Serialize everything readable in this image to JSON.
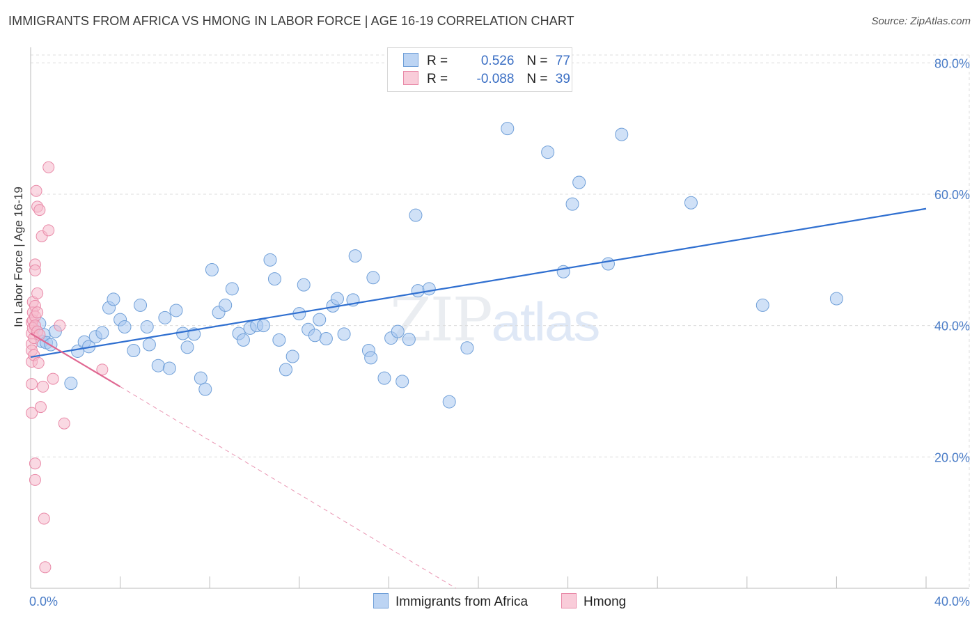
{
  "title": "IMMIGRANTS FROM AFRICA VS HMONG IN LABOR FORCE | AGE 16-19 CORRELATION CHART",
  "source": "Source: ZipAtlas.com",
  "watermark": {
    "zip": "ZIP",
    "atlas": "atlas"
  },
  "legend": {
    "rows": [
      {
        "r_label": "R =",
        "r_value": "0.526",
        "n_label": "N =",
        "n_value": "77"
      },
      {
        "r_label": "R =",
        "r_value": "-0.088",
        "n_label": "N =",
        "n_value": "39"
      }
    ]
  },
  "colors": {
    "blue_fill": "#a9c8f0",
    "blue_stroke": "#6f9fd8",
    "blue_line": "#2f6fd0",
    "pink_fill": "#f6b9cc",
    "pink_stroke": "#e98aa8",
    "pink_line": "#e06892",
    "grid": "#dcdcdc",
    "tick_text": "#4a7cc7"
  },
  "chart_data": {
    "type": "scatter",
    "title": "IMMIGRANTS FROM AFRICA VS HMONG IN LABOR FORCE | AGE 16-19 CORRELATION CHART",
    "xlabel": "",
    "ylabel": "In Labor Force | Age 16-19",
    "xlim": [
      0,
      40
    ],
    "ylim": [
      0,
      83
    ],
    "x_tick_labels": [
      "0.0%",
      "40.0%"
    ],
    "y_ticks": [
      20,
      40,
      60,
      80
    ],
    "y_tick_labels": [
      "20.0%",
      "40.0%",
      "60.0%",
      "80.0%"
    ],
    "grid": true,
    "series": [
      {
        "name": "Immigrants from Africa",
        "color": "#a9c8f0",
        "points": [
          [
            0.4,
            40.3
          ],
          [
            0.5,
            37.6
          ],
          [
            0.6,
            38.6
          ],
          [
            0.7,
            37.4
          ],
          [
            0.9,
            37.1
          ],
          [
            1.1,
            39.1
          ],
          [
            1.8,
            31.2
          ],
          [
            2.1,
            36.1
          ],
          [
            2.4,
            37.5
          ],
          [
            2.6,
            36.8
          ],
          [
            2.9,
            38.3
          ],
          [
            3.2,
            38.9
          ],
          [
            3.5,
            42.7
          ],
          [
            3.7,
            44.0
          ],
          [
            4.0,
            40.9
          ],
          [
            4.2,
            39.8
          ],
          [
            4.6,
            36.2
          ],
          [
            4.9,
            43.1
          ],
          [
            5.2,
            39.8
          ],
          [
            5.3,
            37.1
          ],
          [
            5.7,
            33.9
          ],
          [
            6.0,
            41.2
          ],
          [
            6.2,
            33.5
          ],
          [
            6.5,
            42.3
          ],
          [
            6.8,
            38.8
          ],
          [
            7.0,
            36.7
          ],
          [
            7.3,
            38.7
          ],
          [
            7.6,
            32.0
          ],
          [
            7.8,
            30.3
          ],
          [
            8.1,
            48.5
          ],
          [
            8.4,
            42.0
          ],
          [
            8.7,
            43.1
          ],
          [
            9.0,
            45.6
          ],
          [
            9.3,
            38.8
          ],
          [
            9.5,
            37.8
          ],
          [
            9.8,
            39.6
          ],
          [
            10.1,
            40.0
          ],
          [
            10.4,
            40.0
          ],
          [
            10.7,
            50.0
          ],
          [
            10.9,
            47.1
          ],
          [
            11.1,
            37.8
          ],
          [
            11.4,
            33.3
          ],
          [
            11.7,
            35.3
          ],
          [
            12.0,
            41.8
          ],
          [
            12.2,
            46.2
          ],
          [
            12.4,
            39.4
          ],
          [
            12.7,
            38.5
          ],
          [
            12.9,
            40.9
          ],
          [
            13.2,
            38.0
          ],
          [
            13.5,
            43.0
          ],
          [
            13.7,
            44.1
          ],
          [
            14.0,
            38.7
          ],
          [
            14.4,
            43.9
          ],
          [
            14.5,
            50.6
          ],
          [
            15.1,
            36.2
          ],
          [
            15.2,
            35.1
          ],
          [
            15.3,
            47.3
          ],
          [
            15.8,
            32.0
          ],
          [
            16.1,
            38.1
          ],
          [
            16.4,
            39.1
          ],
          [
            16.6,
            31.5
          ],
          [
            16.9,
            37.9
          ],
          [
            17.2,
            56.8
          ],
          [
            17.3,
            45.3
          ],
          [
            17.8,
            45.6
          ],
          [
            18.7,
            28.4
          ],
          [
            19.5,
            36.6
          ],
          [
            21.3,
            70.0
          ],
          [
            23.1,
            66.4
          ],
          [
            23.8,
            48.2
          ],
          [
            24.2,
            58.5
          ],
          [
            24.5,
            61.8
          ],
          [
            25.8,
            49.4
          ],
          [
            26.4,
            69.1
          ],
          [
            29.5,
            58.7
          ],
          [
            32.7,
            43.1
          ],
          [
            36.0,
            44.1
          ]
        ],
        "trend": {
          "x0": 0,
          "y0": 35.2,
          "x1": 40,
          "y1": 57.8
        }
      },
      {
        "name": "Hmong",
        "color": "#f6b9cc",
        "points": [
          [
            0.05,
            40.5
          ],
          [
            0.05,
            38.8
          ],
          [
            0.05,
            37.2
          ],
          [
            0.05,
            36.2
          ],
          [
            0.05,
            34.5
          ],
          [
            0.05,
            31.1
          ],
          [
            0.05,
            26.7
          ],
          [
            0.1,
            43.6
          ],
          [
            0.1,
            42.0
          ],
          [
            0.1,
            40.8
          ],
          [
            0.1,
            39.6
          ],
          [
            0.15,
            38.1
          ],
          [
            0.15,
            35.5
          ],
          [
            0.2,
            49.3
          ],
          [
            0.2,
            48.4
          ],
          [
            0.2,
            43.0
          ],
          [
            0.2,
            41.4
          ],
          [
            0.2,
            40.0
          ],
          [
            0.2,
            19.0
          ],
          [
            0.2,
            16.5
          ],
          [
            0.25,
            60.5
          ],
          [
            0.3,
            58.1
          ],
          [
            0.3,
            42.0
          ],
          [
            0.3,
            39.1
          ],
          [
            0.35,
            34.3
          ],
          [
            0.4,
            57.6
          ],
          [
            0.4,
            38.6
          ],
          [
            0.45,
            27.6
          ],
          [
            0.5,
            53.6
          ],
          [
            0.55,
            30.7
          ],
          [
            0.6,
            10.6
          ],
          [
            0.65,
            3.2
          ],
          [
            0.8,
            54.5
          ],
          [
            0.8,
            64.1
          ],
          [
            1.0,
            31.9
          ],
          [
            1.3,
            40.0
          ],
          [
            1.5,
            25.1
          ],
          [
            3.2,
            33.3
          ],
          [
            0.3,
            44.9
          ]
        ],
        "trend": {
          "x0": 0,
          "y0": 38.8,
          "x1": 4.0,
          "y1": 30.7
        },
        "trend_dashed": {
          "x0": 4.0,
          "y0": 30.7,
          "x1": 19.0,
          "y1": 0
        }
      }
    ]
  },
  "bottom_legend": [
    "Immigrants from Africa",
    "Hmong"
  ]
}
